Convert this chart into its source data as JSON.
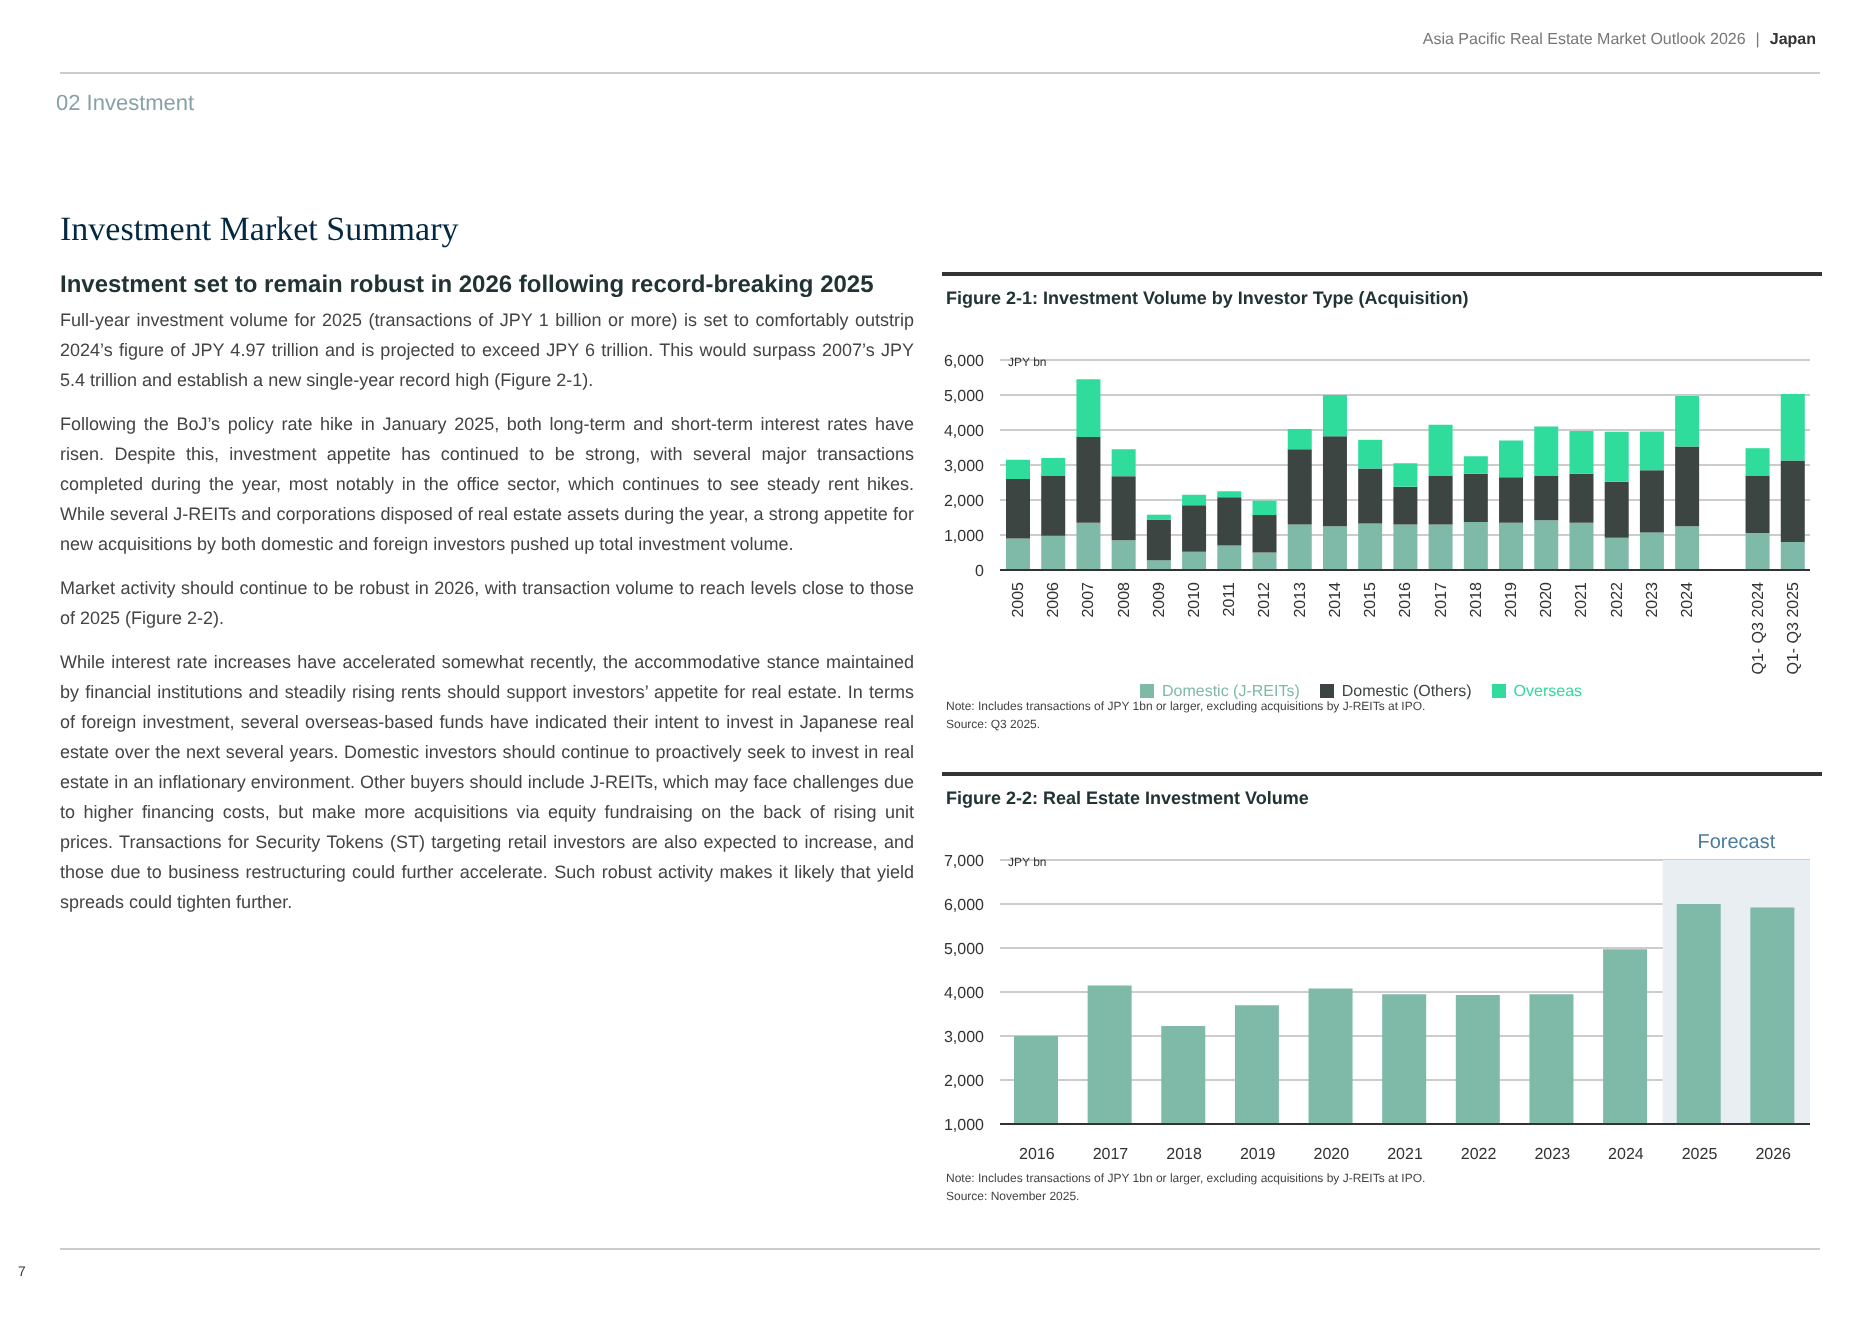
{
  "chart_data": [
    {
      "type": "other",
      "title": "02 Investment",
      "annotations": [
        "Asia Pacific Real Estate Market Outlook 2026",
        "|",
        "Japan",
        "7"
      ]
    },
    {
      "type": "other",
      "title": "Investment Market Summary",
      "subtitle": "Investment set to remain robust in 2026 following record-breaking 2025",
      "annotations": [
        "Full-year investment volume for 2025 (transactions of JPY 1 billion or more) is set to comfortably outstrip 2024’s figure of JPY 4.97 trillion and is projected to exceed JPY 6 trillion. This would surpass 2007’s JPY 5.4 trillion and establish a new single-year record high (Figure 2-1).",
        "Following the BoJ’s policy rate hike in January 2025, both long-term and short-term interest rates have risen. Despite this, investment appetite has continued to be strong, with several major transactions completed during the year, most notably in the office sector, which continues to see steady rent hikes. While several J-REITs and corporations disposed of real estate assets during the year, a strong appetite for new acquisitions by both domestic and foreign investors pushed up total investment volume.",
        "Market activity should continue to be robust in 2026, with transaction volume to reach levels close to those of 2025 (Figure 2-2).",
        "While interest rate increases have accelerated somewhat recently, the accommodative stance maintained by financial institutions and steadily rising rents should support investors’ appetite for real estate. In terms of foreign investment, several overseas-based funds have indicated their intent to invest in Japanese real estate over the next several years. Domestic investors should continue to proactively seek to invest in real estate in an inflationary environment. Other buyers should include J-REITs, which may face challenges due to higher financing costs, but make more acquisitions via equity fundraising on the back of rising unit prices. Transactions for Security Tokens (ST) targeting retail investors are also expected to increase, and those due to business restructuring could further accelerate. Such robust activity makes it likely that yield spreads could tighten further."
      ]
    },
    {
      "type": "bar",
      "title": "Figure 2-1: Investment Volume by Investor Type (Acquisition)",
      "ylabel": "JPY bn",
      "stacked": true,
      "grid": "y",
      "legend": "bottom",
      "categories": [
        "2005",
        "2006",
        "2007",
        "2008",
        "2009",
        "2010",
        "2011",
        "2012",
        "2013",
        "2014",
        "2015",
        "2016",
        "2017",
        "2018",
        "2019",
        "2020",
        "2021",
        "2022",
        "2023",
        "2024",
        null,
        "Q1- Q3 2024",
        "Q1- Q3 2025"
      ],
      "series": [
        {
          "name": "Domestic (J-REITs)",
          "color": "#7fb9a8",
          "values": [
            900,
            980,
            1350,
            850,
            280,
            520,
            700,
            500,
            1300,
            1250,
            1330,
            1300,
            1300,
            1370,
            1350,
            1420,
            1350,
            920,
            1070,
            1250,
            null,
            1060,
            800
          ]
        },
        {
          "name": "Domestic (Others)",
          "color": "#3d4543",
          "values": [
            1700,
            1720,
            2450,
            1830,
            1150,
            1330,
            1380,
            1070,
            2150,
            2570,
            1570,
            1080,
            1400,
            1380,
            1300,
            1280,
            1400,
            1600,
            1780,
            2280,
            null,
            1640,
            2330
          ]
        },
        {
          "name": "Overseas",
          "color": "#2fdc9c",
          "values": [
            550,
            500,
            1650,
            770,
            150,
            300,
            170,
            410,
            580,
            1180,
            820,
            670,
            1450,
            500,
            1050,
            1400,
            1220,
            1430,
            1110,
            1440,
            null,
            780,
            1900
          ]
        }
      ],
      "ylim": [
        0,
        6000
      ],
      "yticks": [
        0,
        {
          "value": 1000,
          "label": "1,000"
        },
        {
          "value": 2000,
          "label": "2,000"
        },
        {
          "value": 3000,
          "label": "3,000"
        },
        {
          "value": 4000,
          "label": "4,000"
        },
        {
          "value": 5000,
          "label": "5,000"
        },
        {
          "value": 6000,
          "label": "6,000"
        }
      ],
      "annotations": [
        "Note: Includes transactions of JPY 1bn or larger, excluding acquisitions by J-REITs at IPO.",
        "Source: Q3 2025."
      ]
    },
    {
      "type": "bar",
      "title": "Figure 2-2: Real Estate Investment Volume",
      "ylabel": "JPY bn",
      "grid": "y",
      "categories": [
        "2016",
        "2017",
        "2018",
        "2019",
        "2020",
        "2021",
        "2022",
        "2023",
        "2024",
        "2025",
        "2026"
      ],
      "values": [
        3000,
        4150,
        3230,
        3700,
        4080,
        3950,
        3930,
        3950,
        4970,
        6000,
        5920
      ],
      "color": "#7fb9a8",
      "ylim": [
        1000,
        7000
      ],
      "yticks": [
        {
          "value": 1000,
          "label": "1,000"
        },
        {
          "value": 2000,
          "label": "2,000"
        },
        {
          "value": 3000,
          "label": "3,000"
        },
        {
          "value": 4000,
          "label": "4,000"
        },
        {
          "value": 5000,
          "label": "5,000"
        },
        {
          "value": 6000,
          "label": "6,000"
        },
        {
          "value": 7000,
          "label": "7,000"
        }
      ],
      "bands": [
        {
          "axis": "x",
          "from": "2025",
          "to": "2026",
          "label": "Forecast",
          "color": "#e8eef2"
        }
      ],
      "annotations": [
        "Note: Includes transactions of JPY 1bn or larger, excluding acquisitions by J-REITs at IPO.",
        "Source: November 2025."
      ]
    }
  ]
}
